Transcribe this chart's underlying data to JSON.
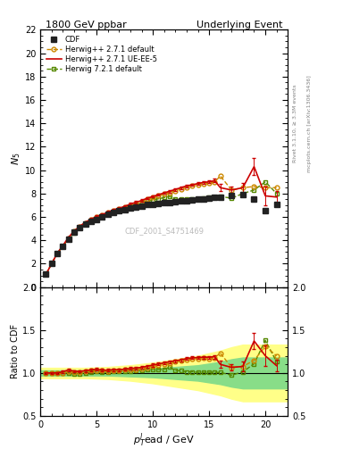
{
  "title_left": "1800 GeV ppbar",
  "title_right": "Underlying Event",
  "ylabel_main": "$N_5$",
  "ylabel_ratio": "Ratio to CDF",
  "xlabel": "$p_T^l$ead / GeV",
  "right_label_top": "Rivet 3.1.10, ≥ 3.3M events",
  "right_label_bottom": "mcplots.cern.ch [arXiv:1306.3436]",
  "watermark": "CDF_2001_S4751469",
  "ylim_main": [
    0,
    22
  ],
  "ylim_ratio": [
    0.5,
    2.0
  ],
  "xlim": [
    0,
    22
  ],
  "xticks": [
    0,
    5,
    10,
    15,
    20
  ],
  "yticks_main": [
    0,
    2,
    4,
    6,
    8,
    10,
    12,
    14,
    16,
    18,
    20,
    22
  ],
  "yticks_ratio": [
    0.5,
    1.0,
    1.5,
    2.0
  ],
  "cdf_x": [
    0.5,
    1.0,
    1.5,
    2.0,
    2.5,
    3.0,
    3.5,
    4.0,
    4.5,
    5.0,
    5.5,
    6.0,
    6.5,
    7.0,
    7.5,
    8.0,
    8.5,
    9.0,
    9.5,
    10.0,
    10.5,
    11.0,
    11.5,
    12.0,
    12.5,
    13.0,
    13.5,
    14.0,
    14.5,
    15.0,
    15.5,
    16.0,
    17.0,
    18.0,
    19.0,
    20.0,
    21.0
  ],
  "cdf_y": [
    1.1,
    2.0,
    2.9,
    3.5,
    4.1,
    4.7,
    5.1,
    5.4,
    5.6,
    5.8,
    6.0,
    6.2,
    6.35,
    6.5,
    6.6,
    6.75,
    6.85,
    6.95,
    7.05,
    7.1,
    7.15,
    7.2,
    7.25,
    7.3,
    7.35,
    7.4,
    7.45,
    7.5,
    7.55,
    7.6,
    7.65,
    7.7,
    7.8,
    7.9,
    7.5,
    6.5,
    7.1
  ],
  "cdf_color": "#222222",
  "hw271def_x": [
    0.5,
    1.0,
    1.5,
    2.0,
    2.5,
    3.0,
    3.5,
    4.0,
    4.5,
    5.0,
    5.5,
    6.0,
    6.5,
    7.0,
    7.5,
    8.0,
    8.5,
    9.0,
    9.5,
    10.0,
    10.5,
    11.0,
    11.5,
    12.0,
    12.5,
    13.0,
    13.5,
    14.0,
    14.5,
    15.0,
    15.5,
    16.0,
    17.0,
    18.0,
    19.0,
    20.0,
    21.0
  ],
  "hw271def_y": [
    1.1,
    2.0,
    2.9,
    3.5,
    4.2,
    4.75,
    5.15,
    5.5,
    5.75,
    6.0,
    6.15,
    6.35,
    6.55,
    6.7,
    6.85,
    7.0,
    7.15,
    7.3,
    7.5,
    7.65,
    7.8,
    7.95,
    8.1,
    8.25,
    8.4,
    8.55,
    8.65,
    8.75,
    8.85,
    8.9,
    9.0,
    9.5,
    8.3,
    8.5,
    8.6,
    8.5,
    8.5
  ],
  "hw271def_color": "#cc8800",
  "hw271ue_x": [
    0.5,
    1.0,
    1.5,
    2.0,
    2.5,
    3.0,
    3.5,
    4.0,
    4.5,
    5.0,
    5.5,
    6.0,
    6.5,
    7.0,
    7.5,
    8.0,
    8.5,
    9.0,
    9.5,
    10.0,
    10.5,
    11.0,
    11.5,
    12.0,
    12.5,
    13.0,
    13.5,
    14.0,
    14.5,
    15.0,
    15.5,
    16.0,
    17.0,
    18.0,
    19.0,
    20.0,
    21.0
  ],
  "hw271ue_y": [
    1.1,
    2.0,
    2.9,
    3.55,
    4.25,
    4.8,
    5.2,
    5.55,
    5.8,
    6.05,
    6.2,
    6.4,
    6.6,
    6.75,
    6.9,
    7.1,
    7.25,
    7.4,
    7.6,
    7.75,
    7.9,
    8.05,
    8.2,
    8.35,
    8.5,
    8.65,
    8.75,
    8.85,
    8.95,
    9.0,
    9.1,
    8.5,
    8.3,
    8.5,
    10.3,
    7.8,
    7.7
  ],
  "hw271ue_yerr": [
    0.05,
    0.06,
    0.07,
    0.07,
    0.08,
    0.08,
    0.09,
    0.09,
    0.1,
    0.1,
    0.1,
    0.1,
    0.1,
    0.1,
    0.1,
    0.1,
    0.1,
    0.1,
    0.1,
    0.1,
    0.1,
    0.1,
    0.1,
    0.1,
    0.1,
    0.1,
    0.1,
    0.1,
    0.1,
    0.1,
    0.15,
    0.3,
    0.3,
    0.4,
    0.7,
    0.8,
    0.5
  ],
  "hw271ue_color": "#cc0000",
  "hw721def_x": [
    0.5,
    1.0,
    1.5,
    2.0,
    2.5,
    3.0,
    3.5,
    4.0,
    4.5,
    5.0,
    5.5,
    6.0,
    6.5,
    7.0,
    7.5,
    8.0,
    8.5,
    9.0,
    9.5,
    10.0,
    10.5,
    11.0,
    11.5,
    12.0,
    12.5,
    13.0,
    13.5,
    14.0,
    14.5,
    15.0,
    15.5,
    16.0,
    17.0,
    18.0,
    19.0,
    20.0,
    21.0
  ],
  "hw721def_y": [
    1.1,
    2.0,
    2.9,
    3.5,
    4.1,
    4.65,
    5.05,
    5.4,
    5.65,
    5.9,
    6.05,
    6.25,
    6.45,
    6.6,
    6.75,
    6.9,
    7.05,
    7.2,
    7.35,
    7.45,
    7.55,
    7.65,
    7.75,
    7.5,
    7.5,
    7.5,
    7.5,
    7.55,
    7.6,
    7.65,
    7.7,
    7.75,
    7.6,
    8.0,
    8.3,
    9.0,
    8.0
  ],
  "hw721def_color": "#558800",
  "ratio_hw271def_y": [
    1.0,
    1.0,
    1.0,
    1.0,
    1.02,
    1.01,
    1.01,
    1.02,
    1.03,
    1.03,
    1.025,
    1.02,
    1.03,
    1.03,
    1.04,
    1.04,
    1.044,
    1.05,
    1.065,
    1.077,
    1.09,
    1.1,
    1.115,
    1.13,
    1.14,
    1.155,
    1.163,
    1.167,
    1.173,
    1.17,
    1.18,
    1.23,
    1.065,
    1.076,
    1.147,
    1.31,
    1.2
  ],
  "ratio_hw271ue_y": [
    1.0,
    1.0,
    1.0,
    1.014,
    1.036,
    1.021,
    1.018,
    1.028,
    1.036,
    1.043,
    1.033,
    1.032,
    1.039,
    1.038,
    1.045,
    1.052,
    1.058,
    1.065,
    1.079,
    1.092,
    1.105,
    1.118,
    1.132,
    1.142,
    1.153,
    1.168,
    1.176,
    1.18,
    1.184,
    1.184,
    1.19,
    1.1,
    1.065,
    1.076,
    1.373,
    1.2,
    1.085
  ],
  "ratio_hw271ue_yerr": [
    0.01,
    0.01,
    0.012,
    0.012,
    0.013,
    0.013,
    0.014,
    0.014,
    0.015,
    0.015,
    0.015,
    0.015,
    0.015,
    0.015,
    0.015,
    0.015,
    0.015,
    0.015,
    0.016,
    0.016,
    0.016,
    0.016,
    0.016,
    0.016,
    0.016,
    0.016,
    0.016,
    0.016,
    0.016,
    0.016,
    0.02,
    0.04,
    0.04,
    0.055,
    0.09,
    0.12,
    0.07
  ],
  "ratio_hw721def_y": [
    1.0,
    1.0,
    1.0,
    1.0,
    1.0,
    0.989,
    0.99,
    1.0,
    1.009,
    1.017,
    1.008,
    1.008,
    1.016,
    1.015,
    1.023,
    1.022,
    1.029,
    1.029,
    1.042,
    1.042,
    1.042,
    1.042,
    1.069,
    1.027,
    1.027,
    1.014,
    1.014,
    1.007,
    1.007,
    1.007,
    1.007,
    1.006,
    0.974,
    1.013,
    1.107,
    1.38,
    1.13
  ],
  "green_band_x": [
    0,
    2,
    4,
    6,
    8,
    10,
    12,
    14,
    16,
    17,
    18,
    19,
    20,
    21,
    22
  ],
  "green_band_lo": [
    0.97,
    0.97,
    0.97,
    0.97,
    0.96,
    0.95,
    0.93,
    0.91,
    0.87,
    0.84,
    0.82,
    0.82,
    0.82,
    0.82,
    0.82
  ],
  "green_band_hi": [
    1.03,
    1.03,
    1.03,
    1.03,
    1.04,
    1.05,
    1.07,
    1.09,
    1.13,
    1.16,
    1.18,
    1.18,
    1.18,
    1.18,
    1.18
  ],
  "yellow_band_x": [
    0,
    2,
    4,
    6,
    8,
    10,
    12,
    14,
    16,
    17,
    18,
    19,
    20,
    21,
    22
  ],
  "yellow_band_lo": [
    0.94,
    0.94,
    0.94,
    0.93,
    0.91,
    0.88,
    0.84,
    0.8,
    0.74,
    0.7,
    0.67,
    0.67,
    0.67,
    0.67,
    0.67
  ],
  "yellow_band_hi": [
    1.06,
    1.06,
    1.06,
    1.07,
    1.09,
    1.12,
    1.16,
    1.2,
    1.26,
    1.3,
    1.33,
    1.33,
    1.33,
    1.33,
    1.33
  ]
}
